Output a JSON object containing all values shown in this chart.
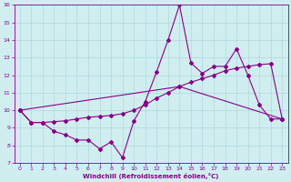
{
  "xlabel": "Windchill (Refroidissement éolien,°C)",
  "background_color": "#d0eef0",
  "line_color": "#880088",
  "xmin": -0.5,
  "xmax": 23.5,
  "ymin": 7,
  "ymax": 16,
  "yticks": [
    7,
    8,
    9,
    10,
    11,
    12,
    13,
    14,
    15,
    16
  ],
  "xticks": [
    0,
    1,
    2,
    3,
    4,
    5,
    6,
    7,
    8,
    9,
    10,
    11,
    12,
    13,
    14,
    15,
    16,
    17,
    18,
    19,
    20,
    21,
    22,
    23
  ],
  "line1_x": [
    0,
    1,
    2,
    3,
    4,
    5,
    6,
    7,
    8,
    9,
    10,
    11,
    12,
    13,
    14,
    15,
    16,
    17,
    18,
    19,
    20,
    21,
    22,
    23
  ],
  "line1_y": [
    10.0,
    9.3,
    9.3,
    8.8,
    8.6,
    8.3,
    8.3,
    7.8,
    8.2,
    7.3,
    9.4,
    10.5,
    12.2,
    14.0,
    16.0,
    12.7,
    12.1,
    12.5,
    12.5,
    13.5,
    12.0,
    10.3,
    9.5,
    9.5
  ],
  "line2_x": [
    0,
    1,
    2,
    3,
    4,
    5,
    6,
    7,
    8,
    9,
    10,
    11,
    12,
    13,
    14,
    15,
    16,
    17,
    18,
    19,
    20,
    21,
    22,
    23
  ],
  "line2_y": [
    10.0,
    9.3,
    9.3,
    9.35,
    9.4,
    9.5,
    9.6,
    9.65,
    9.7,
    9.8,
    10.0,
    10.3,
    10.7,
    11.0,
    11.35,
    11.6,
    11.8,
    12.0,
    12.25,
    12.4,
    12.5,
    12.6,
    12.65,
    9.5
  ],
  "line3_x": [
    0,
    14,
    23
  ],
  "line3_y": [
    10.0,
    11.35,
    9.5
  ]
}
